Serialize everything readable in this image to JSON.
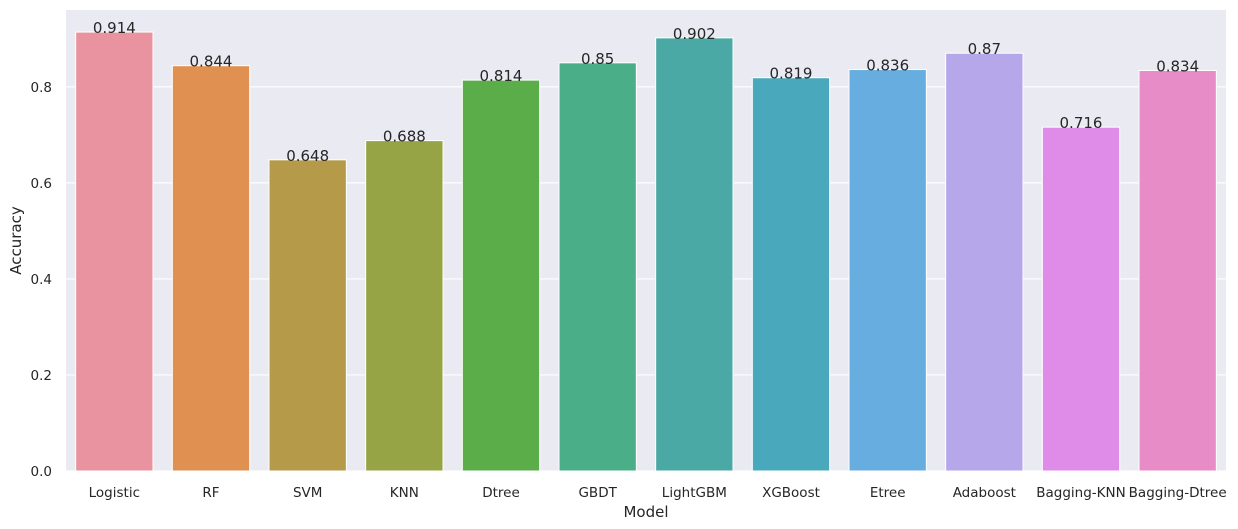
{
  "chart_data": {
    "type": "bar",
    "title": "",
    "xlabel": "Model",
    "ylabel": "Accuracy",
    "ylim": [
      0,
      0.96
    ],
    "yticks": [
      0.0,
      0.2,
      0.4,
      0.6,
      0.8
    ],
    "ytick_labels": [
      "0.0",
      "0.2",
      "0.4",
      "0.6",
      "0.8"
    ],
    "grid": true,
    "categories": [
      "Logistic",
      "RF",
      "SVM",
      "KNN",
      "Dtree",
      "GBDT",
      "LightGBM",
      "XGBoost",
      "Etree",
      "Adaboost",
      "Bagging-KNN",
      "Bagging-Dtree"
    ],
    "values": [
      0.914,
      0.844,
      0.648,
      0.688,
      0.814,
      0.85,
      0.902,
      0.819,
      0.836,
      0.87,
      0.716,
      0.834
    ],
    "data_labels": [
      "0.914",
      "0.844",
      "0.648",
      "0.688",
      "0.814",
      "0.85",
      "0.902",
      "0.819",
      "0.836",
      "0.87",
      "0.716",
      "0.834"
    ],
    "colors": [
      "#e8939f",
      "#e09050",
      "#b59a4a",
      "#97a446",
      "#5aad48",
      "#4aaf88",
      "#4aa9a4",
      "#4aa8bc",
      "#68addf",
      "#b6a6ea",
      "#df8ce8",
      "#e78cc6"
    ],
    "background_color": "#eaeaf2",
    "grid_color": "#ffffff"
  }
}
